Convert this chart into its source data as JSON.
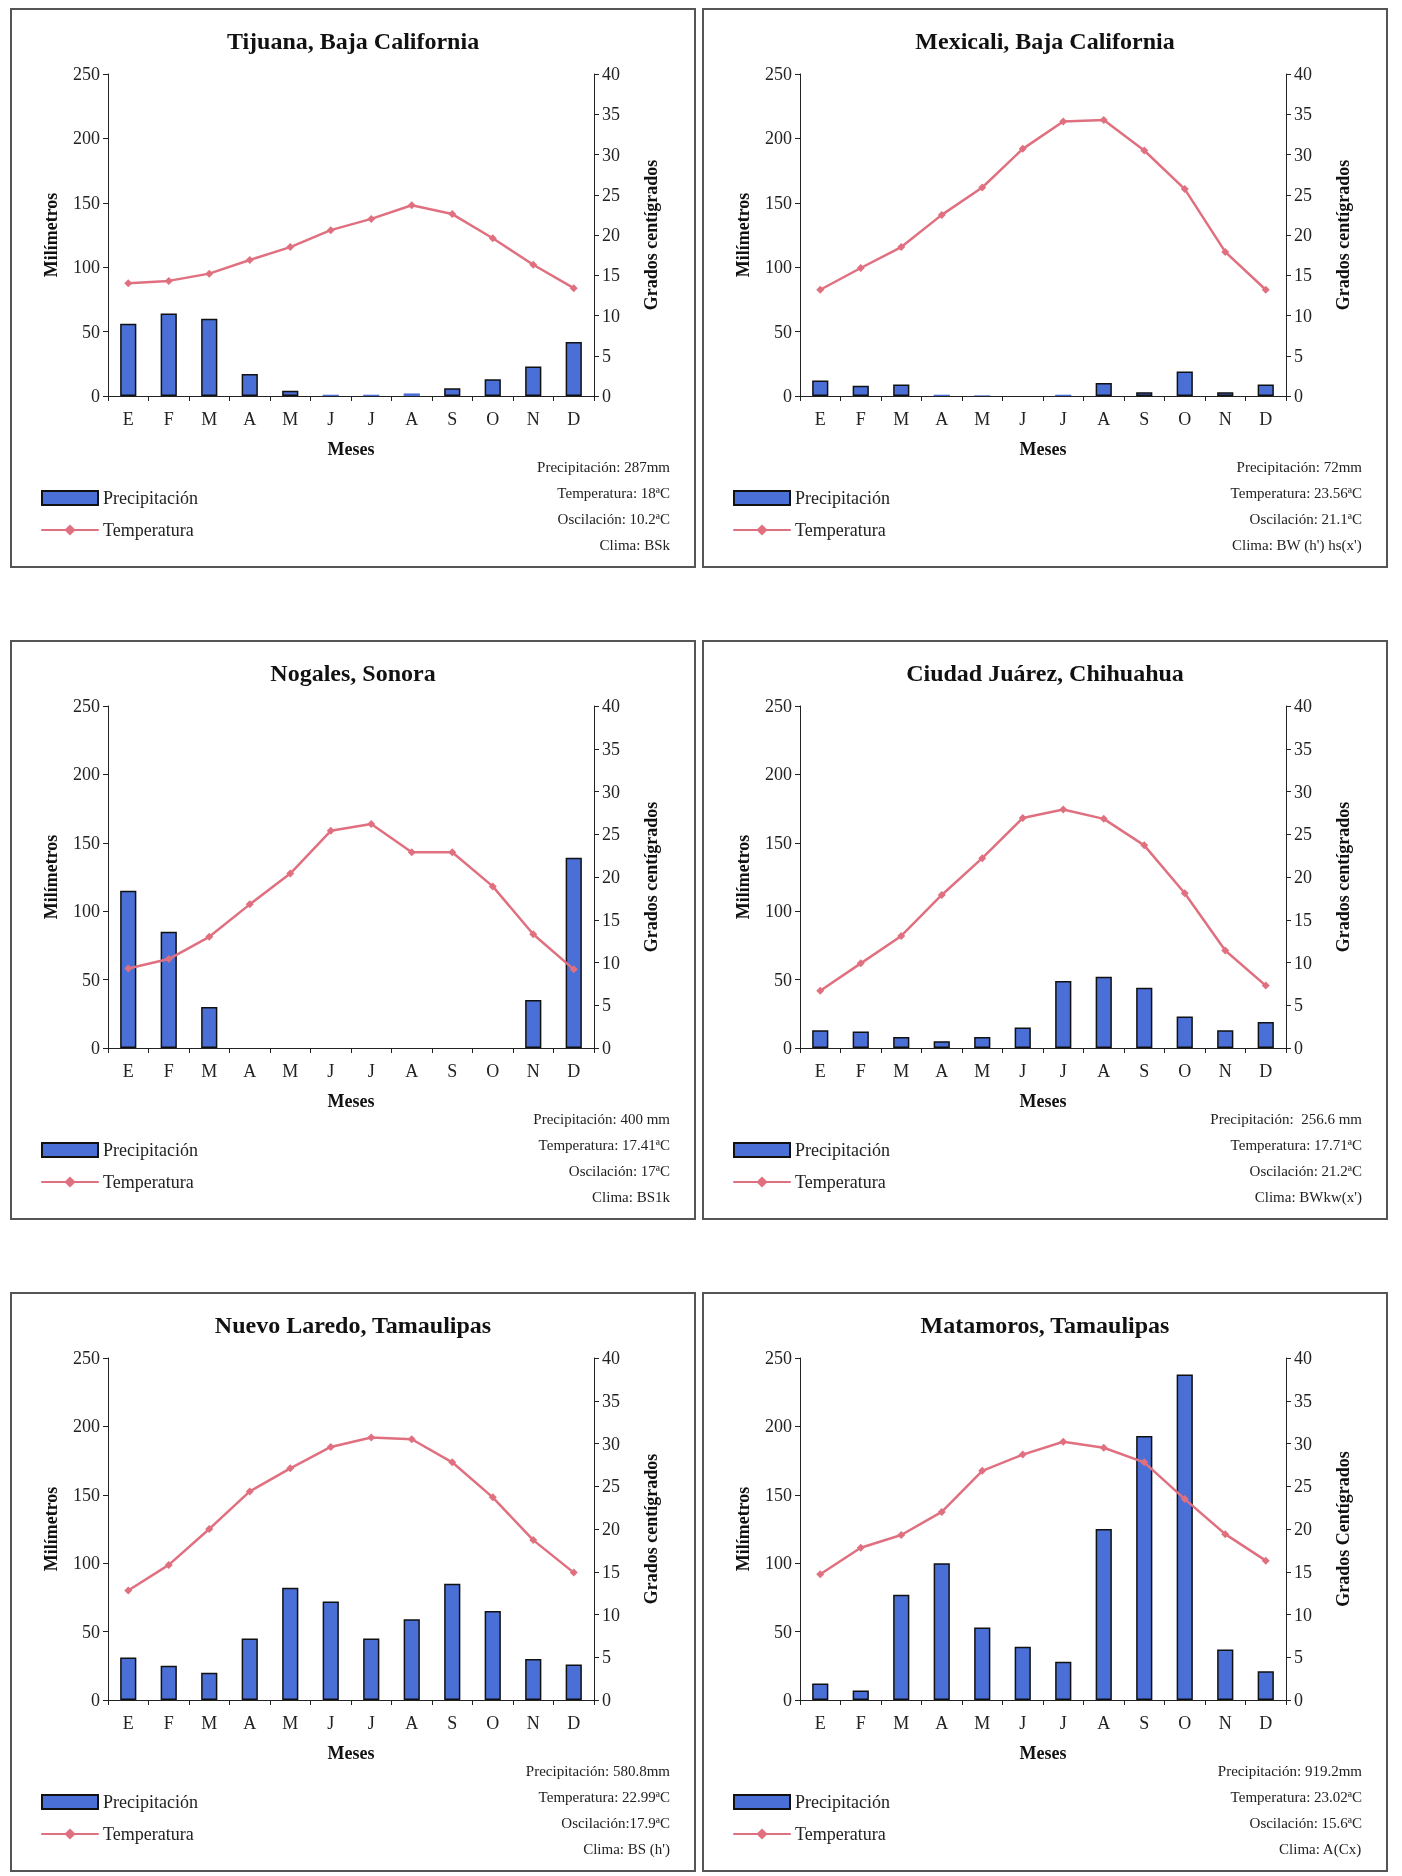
{
  "chart_data": [
    {
      "type": "bar",
      "title": "Tijuana, Baja California",
      "xlabel": "Meses",
      "ylabel": "Milímetros",
      "y2label": "Grados centígrados",
      "categories": [
        "E",
        "F",
        "M",
        "A",
        "M",
        "J",
        "J",
        "A",
        "S",
        "O",
        "N",
        "D"
      ],
      "ylim": [
        0,
        250
      ],
      "yticks": [
        0,
        50,
        100,
        150,
        200,
        250
      ],
      "y2lim": [
        0,
        40
      ],
      "y2ticks": [
        0,
        5,
        10,
        15,
        20,
        25,
        30,
        35,
        40
      ],
      "legend": "bottom left",
      "marker": "diamond",
      "line_style": "solid",
      "series": [
        {
          "name": "Precipitación",
          "color": "#4a6fd6",
          "values": [
            56,
            64,
            60,
            17,
            4,
            1,
            1,
            2,
            6,
            13,
            23,
            42
          ]
        },
        {
          "name": "Temperatura",
          "type": "line",
          "axis": "y2",
          "color": "#e0707f",
          "values": [
            14.0,
            14.3,
            15.2,
            16.9,
            18.5,
            20.6,
            22.0,
            23.7,
            22.6,
            19.6,
            16.3,
            13.4
          ]
        }
      ],
      "annotations": [
        "Precipitación: 287mm",
        "Temperatura: 18ªC",
        "Oscilación: 10.2ªC",
        "Clima: BSk"
      ]
    },
    {
      "type": "bar",
      "title": "Mexicali, Baja California",
      "xlabel": "Meses",
      "ylabel": "Milímetros",
      "y2label": "Grados centígrados",
      "categories": [
        "E",
        "F",
        "M",
        "A",
        "M",
        "J",
        "J",
        "A",
        "S",
        "O",
        "N",
        "D"
      ],
      "ylim": [
        0,
        250
      ],
      "yticks": [
        0,
        50,
        100,
        150,
        200,
        250
      ],
      "y2lim": [
        0,
        40
      ],
      "y2ticks": [
        0,
        5,
        10,
        15,
        20,
        25,
        30,
        35,
        40
      ],
      "legend": "bottom left",
      "marker": "diamond",
      "line_style": "solid",
      "series": [
        {
          "name": "Precipitación",
          "color": "#4a6fd6",
          "values": [
            12,
            8,
            9,
            1,
            0.5,
            0,
            1,
            10,
            3,
            19,
            3,
            9
          ]
        },
        {
          "name": "Temperatura",
          "type": "line",
          "axis": "y2",
          "color": "#e0707f",
          "values": [
            13.2,
            15.9,
            18.5,
            22.5,
            25.9,
            30.7,
            34.1,
            34.3,
            30.5,
            25.7,
            17.9,
            13.2
          ]
        }
      ],
      "annotations": [
        "Precipitación: 72mm",
        "Temperatura: 23.56ªC",
        "Oscilación: 21.1ªC",
        "Clima: BW (h') hs(x')"
      ]
    },
    {
      "type": "bar",
      "title": "Nogales, Sonora",
      "xlabel": "Meses",
      "ylabel": "Milímetros",
      "y2label": "Grados centígrados",
      "categories": [
        "E",
        "F",
        "M",
        "A",
        "M",
        "J",
        "J",
        "A",
        "S",
        "O",
        "N",
        "D"
      ],
      "ylim": [
        0,
        250
      ],
      "yticks": [
        0,
        50,
        100,
        150,
        200,
        250
      ],
      "y2lim": [
        0,
        40
      ],
      "y2ticks": [
        0,
        5,
        10,
        15,
        20,
        25,
        30,
        35,
        40
      ],
      "legend": "bottom left",
      "marker": "diamond",
      "line_style": "solid",
      "series": [
        {
          "name": "Precipitación",
          "color": "#4a6fd6",
          "values": [
            115,
            85,
            30,
            0,
            0,
            0,
            0,
            0,
            0,
            0,
            35,
            139
          ]
        },
        {
          "name": "Temperatura",
          "type": "line",
          "axis": "y2",
          "color": "#e0707f",
          "values": [
            9.3,
            10.4,
            13.0,
            16.8,
            20.4,
            25.4,
            26.2,
            22.9,
            22.9,
            18.9,
            13.3,
            9.2
          ]
        }
      ],
      "annotations": [
        "Precipitación: 400 mm",
        "Temperatura: 17.41ªC",
        "Oscilación: 17ªC",
        "Clima: BS1k"
      ]
    },
    {
      "type": "bar",
      "title": "Ciudad Juárez, Chihuahua",
      "xlabel": "Meses",
      "ylabel": "Milímetros",
      "y2label": "Grados centígrados",
      "categories": [
        "E",
        "F",
        "M",
        "A",
        "M",
        "J",
        "J",
        "A",
        "S",
        "O",
        "N",
        "D"
      ],
      "ylim": [
        0,
        250
      ],
      "yticks": [
        0,
        50,
        100,
        150,
        200,
        250
      ],
      "y2lim": [
        0,
        40
      ],
      "y2ticks": [
        0,
        5,
        10,
        15,
        20,
        25,
        30,
        35,
        40
      ],
      "legend": "bottom left",
      "marker": "diamond",
      "line_style": "solid",
      "series": [
        {
          "name": "Precipitación",
          "color": "#4a6fd6",
          "values": [
            13,
            12,
            8,
            5,
            8,
            15,
            49,
            52,
            44,
            23,
            13,
            19
          ]
        },
        {
          "name": "Temperatura",
          "type": "line",
          "axis": "y2",
          "color": "#e0707f",
          "values": [
            6.7,
            9.9,
            13.1,
            17.9,
            22.2,
            26.9,
            27.9,
            26.8,
            23.7,
            18.1,
            11.4,
            7.3
          ]
        }
      ],
      "annotations": [
        "Precipitación:  256.6 mm",
        "Temperatura: 17.71ªC",
        "Oscilación: 21.2ªC",
        "Clima: BWkw(x')"
      ]
    },
    {
      "type": "bar",
      "title": "Nuevo Laredo, Tamaulipas",
      "xlabel": "Meses",
      "ylabel": "Milímetros",
      "y2label": "Grados centígrados",
      "categories": [
        "E",
        "F",
        "M",
        "A",
        "M",
        "J",
        "J",
        "A",
        "S",
        "O",
        "N",
        "D"
      ],
      "ylim": [
        0,
        250
      ],
      "yticks": [
        0,
        50,
        100,
        150,
        200,
        250
      ],
      "y2lim": [
        0,
        40
      ],
      "y2ticks": [
        0,
        5,
        10,
        15,
        20,
        25,
        30,
        35,
        40
      ],
      "legend": "bottom left",
      "marker": "diamond",
      "line_style": "solid",
      "series": [
        {
          "name": "Precipitación",
          "color": "#4a6fd6",
          "values": [
            31,
            25,
            20,
            45,
            82,
            72,
            45,
            59,
            85,
            65,
            30,
            26
          ]
        },
        {
          "name": "Temperatura",
          "type": "line",
          "axis": "y2",
          "color": "#e0707f",
          "values": [
            12.8,
            15.8,
            20.0,
            24.4,
            27.1,
            29.6,
            30.7,
            30.5,
            27.8,
            23.7,
            18.7,
            14.9
          ]
        }
      ],
      "annotations": [
        "Precipitación: 580.8mm",
        "Temperatura: 22.99ªC",
        "Oscilación:17.9ªC",
        "Clima: BS (h')"
      ]
    },
    {
      "type": "bar",
      "title": "Matamoros, Tamaulipas",
      "xlabel": "Meses",
      "ylabel": "Milímetros",
      "y2label": "Grados Centígrados",
      "categories": [
        "E",
        "F",
        "M",
        "A",
        "M",
        "J",
        "J",
        "A",
        "S",
        "O",
        "N",
        "D"
      ],
      "ylim": [
        0,
        250
      ],
      "yticks": [
        0,
        50,
        100,
        150,
        200,
        250
      ],
      "y2lim": [
        0,
        40
      ],
      "y2ticks": [
        0,
        5,
        10,
        15,
        20,
        25,
        30,
        35,
        40
      ],
      "legend": "bottom left",
      "marker": "diamond",
      "line_style": "solid",
      "series": [
        {
          "name": "Precipitación",
          "color": "#4a6fd6",
          "values": [
            12,
            7,
            77,
            100,
            53,
            39,
            28,
            125,
            193,
            238,
            37,
            21
          ]
        },
        {
          "name": "Temperatura",
          "type": "line",
          "axis": "y2",
          "color": "#e0707f",
          "values": [
            14.7,
            17.8,
            19.3,
            22.0,
            26.8,
            28.7,
            30.2,
            29.5,
            27.8,
            23.5,
            19.4,
            16.3
          ]
        }
      ],
      "annotations": [
        "Precipitación: 919.2mm",
        "Temperatura: 23.02ªC",
        "Oscilación: 15.6ªC",
        "Clima: A(Cx)"
      ]
    }
  ]
}
